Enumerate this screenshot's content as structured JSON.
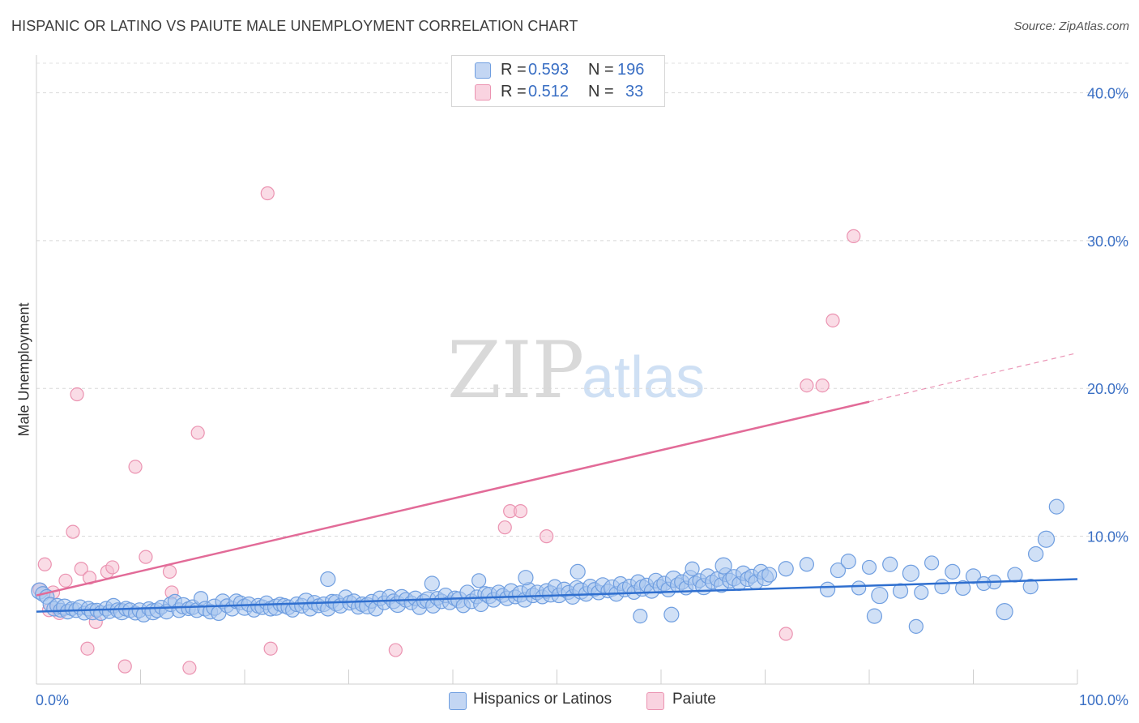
{
  "title": "HISPANIC OR LATINO VS PAIUTE MALE UNEMPLOYMENT CORRELATION CHART",
  "source": "Source: ZipAtlas.com",
  "watermark": {
    "zip": "ZIP",
    "atlas": "atlas"
  },
  "legend": {
    "rows": [
      {
        "r_label": "R =",
        "r_value": "0.593",
        "n_label": "N =",
        "n_value": "196"
      },
      {
        "r_label": "R =",
        "r_value": "0.512",
        "n_label": "N =",
        "n_value": "33"
      }
    ]
  },
  "bottom_legend": {
    "blue": "Hispanics or Latinos",
    "pink": "Paiute"
  },
  "colors": {
    "blue_fill": "#a9c6ef",
    "blue_stroke": "#6f9ee0",
    "blue_line": "#2f6fcf",
    "pink_fill": "#f6c0d2",
    "pink_stroke": "#eb93b1",
    "pink_line": "#e26b98",
    "axis_text": "#3a6fc4"
  },
  "chart_data": {
    "type": "scatter",
    "title": "HISPANIC OR LATINO VS PAIUTE MALE UNEMPLOYMENT CORRELATION CHART",
    "xlabel": "",
    "ylabel": "Male Unemployment",
    "xlim": [
      0,
      100
    ],
    "ylim": [
      0,
      42
    ],
    "x_tick_labels": [
      "0.0%",
      "100.0%"
    ],
    "y_ticks": [
      10,
      20,
      30,
      40
    ],
    "y_tick_labels": [
      "10.0%",
      "20.0%",
      "30.0%",
      "40.0%"
    ],
    "grid": "horizontal dashed",
    "legend_position": "top-center",
    "series": [
      {
        "name": "Hispanics or Latinos",
        "trend": {
          "x0": 0,
          "y0": 4.9,
          "x1": 100,
          "y1": 7.1
        },
        "points": [
          [
            0.3,
            6.3
          ],
          [
            0.6,
            6.1
          ],
          [
            1.0,
            5.9
          ],
          [
            1.3,
            5.4
          ],
          [
            1.7,
            5.1
          ],
          [
            2.0,
            5.3
          ],
          [
            2.3,
            5.0
          ],
          [
            2.7,
            5.2
          ],
          [
            3.0,
            4.9
          ],
          [
            3.4,
            5.1
          ],
          [
            3.8,
            5.0
          ],
          [
            4.2,
            5.2
          ],
          [
            4.6,
            4.8
          ],
          [
            5.0,
            5.1
          ],
          [
            5.4,
            4.9
          ],
          [
            5.8,
            5.0
          ],
          [
            6.2,
            4.8
          ],
          [
            6.7,
            5.1
          ],
          [
            7.0,
            4.9
          ],
          [
            7.4,
            5.3
          ],
          [
            7.8,
            5.0
          ],
          [
            8.2,
            4.9
          ],
          [
            8.6,
            5.1
          ],
          [
            9.0,
            5.0
          ],
          [
            9.5,
            4.8
          ],
          [
            9.9,
            5.0
          ],
          [
            10.3,
            4.7
          ],
          [
            10.8,
            5.1
          ],
          [
            11.2,
            4.9
          ],
          [
            11.6,
            5.0
          ],
          [
            12.0,
            5.2
          ],
          [
            12.5,
            4.9
          ],
          [
            12.9,
            5.4
          ],
          [
            13.3,
            5.6
          ],
          [
            13.7,
            5.0
          ],
          [
            14.1,
            5.3
          ],
          [
            14.6,
            5.1
          ],
          [
            15.0,
            5.2
          ],
          [
            15.4,
            5.0
          ],
          [
            15.8,
            5.8
          ],
          [
            16.2,
            5.1
          ],
          [
            16.7,
            4.9
          ],
          [
            17.1,
            5.2
          ],
          [
            17.5,
            4.8
          ],
          [
            17.9,
            5.6
          ],
          [
            18.3,
            5.3
          ],
          [
            18.8,
            5.1
          ],
          [
            19.2,
            5.6
          ],
          [
            19.6,
            5.5
          ],
          [
            20.0,
            5.2
          ],
          [
            20.4,
            5.4
          ],
          [
            20.9,
            5.0
          ],
          [
            21.3,
            5.3
          ],
          [
            21.7,
            5.2
          ],
          [
            22.1,
            5.5
          ],
          [
            22.5,
            5.1
          ],
          [
            23.0,
            5.2
          ],
          [
            23.4,
            5.4
          ],
          [
            23.8,
            5.3
          ],
          [
            24.2,
            5.2
          ],
          [
            24.6,
            5.0
          ],
          [
            25.0,
            5.4
          ],
          [
            25.5,
            5.3
          ],
          [
            25.9,
            5.6
          ],
          [
            26.3,
            5.1
          ],
          [
            26.7,
            5.5
          ],
          [
            27.1,
            5.3
          ],
          [
            27.6,
            5.4
          ],
          [
            28.0,
            5.1
          ],
          [
            28.4,
            5.6
          ],
          [
            28.8,
            5.5
          ],
          [
            29.2,
            5.3
          ],
          [
            29.7,
            5.9
          ],
          [
            30.1,
            5.5
          ],
          [
            30.5,
            5.6
          ],
          [
            30.9,
            5.2
          ],
          [
            31.3,
            5.4
          ],
          [
            31.8,
            5.3
          ],
          [
            32.2,
            5.6
          ],
          [
            32.6,
            5.1
          ],
          [
            33.0,
            5.8
          ],
          [
            33.4,
            5.5
          ],
          [
            33.9,
            5.9
          ],
          [
            34.3,
            5.6
          ],
          [
            34.7,
            5.4
          ],
          [
            35.1,
            5.9
          ],
          [
            35.5,
            5.7
          ],
          [
            36.0,
            5.5
          ],
          [
            36.4,
            5.8
          ],
          [
            36.8,
            5.2
          ],
          [
            37.2,
            5.6
          ],
          [
            37.6,
            5.7
          ],
          [
            38.1,
            5.3
          ],
          [
            38.5,
            5.8
          ],
          [
            38.9,
            5.6
          ],
          [
            39.3,
            6.0
          ],
          [
            39.7,
            5.5
          ],
          [
            40.2,
            5.8
          ],
          [
            40.6,
            5.7
          ],
          [
            41.0,
            5.3
          ],
          [
            41.4,
            6.2
          ],
          [
            41.8,
            5.6
          ],
          [
            42.3,
            5.9
          ],
          [
            42.7,
            5.4
          ],
          [
            43.1,
            6.1
          ],
          [
            43.5,
            6.0
          ],
          [
            43.9,
            5.7
          ],
          [
            44.4,
            6.2
          ],
          [
            44.8,
            6.0
          ],
          [
            45.2,
            5.8
          ],
          [
            45.6,
            6.3
          ],
          [
            46.0,
            5.9
          ],
          [
            46.5,
            6.1
          ],
          [
            46.9,
            5.7
          ],
          [
            47.3,
            6.4
          ],
          [
            47.7,
            6.0
          ],
          [
            48.1,
            6.2
          ],
          [
            48.6,
            5.9
          ],
          [
            49.0,
            6.3
          ],
          [
            49.4,
            6.1
          ],
          [
            49.8,
            6.6
          ],
          [
            50.2,
            6.0
          ],
          [
            50.7,
            6.4
          ],
          [
            51.1,
            6.2
          ],
          [
            51.5,
            5.9
          ],
          [
            51.9,
            6.5
          ],
          [
            52.3,
            6.3
          ],
          [
            52.8,
            6.1
          ],
          [
            53.2,
            6.6
          ],
          [
            53.6,
            6.4
          ],
          [
            54.0,
            6.2
          ],
          [
            54.4,
            6.7
          ],
          [
            54.9,
            6.3
          ],
          [
            55.3,
            6.5
          ],
          [
            55.7,
            6.1
          ],
          [
            56.1,
            6.8
          ],
          [
            56.5,
            6.4
          ],
          [
            57.0,
            6.6
          ],
          [
            57.4,
            6.2
          ],
          [
            57.8,
            6.9
          ],
          [
            58.2,
            6.5
          ],
          [
            58.6,
            6.7
          ],
          [
            59.1,
            6.3
          ],
          [
            59.5,
            7.0
          ],
          [
            59.9,
            6.6
          ],
          [
            60.3,
            6.8
          ],
          [
            60.7,
            6.4
          ],
          [
            61.2,
            7.1
          ],
          [
            61.6,
            6.7
          ],
          [
            62.0,
            6.9
          ],
          [
            62.4,
            6.5
          ],
          [
            62.8,
            7.2
          ],
          [
            63.3,
            6.8
          ],
          [
            63.7,
            7.0
          ],
          [
            64.1,
            6.6
          ],
          [
            64.5,
            7.3
          ],
          [
            64.9,
            6.9
          ],
          [
            65.4,
            7.1
          ],
          [
            65.8,
            6.7
          ],
          [
            66.2,
            7.4
          ],
          [
            66.6,
            7.0
          ],
          [
            67.0,
            7.2
          ],
          [
            67.5,
            6.8
          ],
          [
            67.9,
            7.5
          ],
          [
            68.3,
            7.1
          ],
          [
            68.7,
            7.3
          ],
          [
            69.1,
            6.9
          ],
          [
            69.6,
            7.6
          ],
          [
            70.0,
            7.2
          ],
          [
            70.4,
            7.4
          ],
          [
            38.0,
            6.8
          ],
          [
            42.5,
            7.0
          ],
          [
            47.0,
            7.2
          ],
          [
            52.0,
            7.6
          ],
          [
            63.0,
            7.8
          ],
          [
            66.0,
            8.0
          ],
          [
            72.0,
            7.8
          ],
          [
            74.0,
            8.1
          ],
          [
            77.0,
            7.7
          ],
          [
            78.0,
            8.3
          ],
          [
            80.0,
            7.9
          ],
          [
            82.0,
            8.1
          ],
          [
            84.0,
            7.5
          ],
          [
            86.0,
            8.2
          ],
          [
            88.0,
            7.6
          ],
          [
            90.0,
            7.3
          ],
          [
            92.0,
            6.9
          ],
          [
            94.0,
            7.4
          ],
          [
            96.0,
            8.8
          ],
          [
            97.0,
            9.8
          ],
          [
            98.0,
            12.0
          ],
          [
            28.0,
            7.1
          ],
          [
            58.0,
            4.6
          ],
          [
            61.0,
            4.7
          ],
          [
            80.5,
            4.6
          ],
          [
            84.5,
            3.9
          ],
          [
            93.0,
            4.9
          ],
          [
            95.5,
            6.6
          ],
          [
            91.0,
            6.8
          ],
          [
            89.0,
            6.5
          ],
          [
            87.0,
            6.6
          ],
          [
            85.0,
            6.2
          ],
          [
            83.0,
            6.3
          ],
          [
            81.0,
            6.0
          ],
          [
            79.0,
            6.5
          ],
          [
            76.0,
            6.4
          ]
        ]
      },
      {
        "name": "Paiute",
        "trend": {
          "x0": 0,
          "y0": 6.0,
          "x1": 80.0,
          "y1": 19.1,
          "dash_to_x": 100,
          "dash_to_y": 22.4
        },
        "points": [
          [
            0.3,
            6.4
          ],
          [
            0.8,
            8.1
          ],
          [
            1.2,
            5.0
          ],
          [
            1.6,
            6.2
          ],
          [
            2.2,
            4.8
          ],
          [
            2.8,
            7.0
          ],
          [
            3.5,
            10.3
          ],
          [
            3.9,
            19.6
          ],
          [
            4.3,
            7.8
          ],
          [
            4.9,
            2.4
          ],
          [
            5.1,
            7.2
          ],
          [
            5.7,
            4.2
          ],
          [
            6.8,
            7.6
          ],
          [
            7.3,
            7.9
          ],
          [
            8.5,
            1.2
          ],
          [
            9.5,
            14.7
          ],
          [
            10.5,
            8.6
          ],
          [
            12.8,
            7.6
          ],
          [
            13.0,
            6.2
          ],
          [
            14.7,
            1.1
          ],
          [
            15.5,
            17.0
          ],
          [
            22.5,
            2.4
          ],
          [
            22.2,
            33.2
          ],
          [
            34.5,
            2.3
          ],
          [
            45.0,
            10.6
          ],
          [
            45.5,
            11.7
          ],
          [
            46.5,
            11.7
          ],
          [
            49.0,
            10.0
          ],
          [
            72.0,
            3.4
          ],
          [
            74.0,
            20.2
          ],
          [
            75.5,
            20.2
          ],
          [
            76.5,
            24.6
          ],
          [
            78.5,
            30.3
          ]
        ]
      }
    ]
  }
}
